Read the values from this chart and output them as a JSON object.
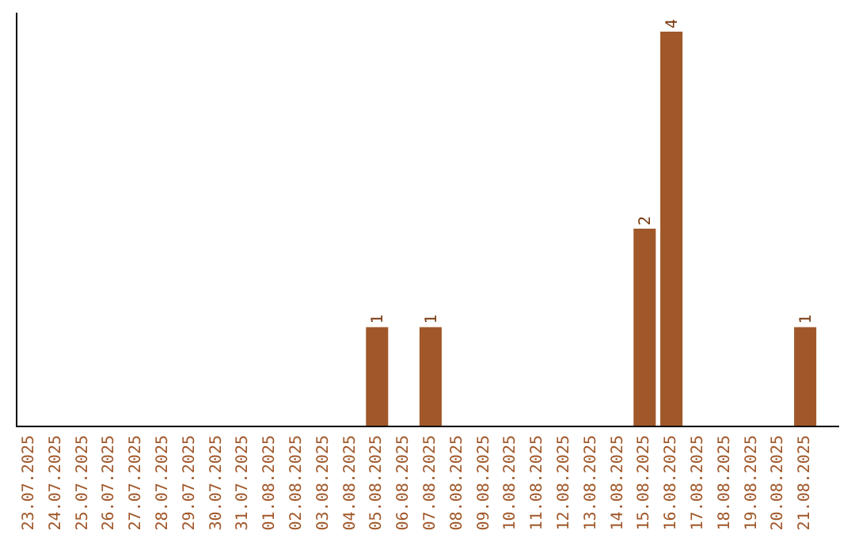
{
  "chart_data": {
    "type": "bar",
    "categories": [
      "23.07.2025",
      "24.07.2025",
      "25.07.2025",
      "26.07.2025",
      "27.07.2025",
      "28.07.2025",
      "29.07.2025",
      "30.07.2025",
      "31.07.2025",
      "01.08.2025",
      "02.08.2025",
      "03.08.2025",
      "04.08.2025",
      "05.08.2025",
      "06.08.2025",
      "07.08.2025",
      "08.08.2025",
      "09.08.2025",
      "10.08.2025",
      "11.08.2025",
      "12.08.2025",
      "13.08.2025",
      "14.08.2025",
      "15.08.2025",
      "16.08.2025",
      "17.08.2025",
      "18.08.2025",
      "19.08.2025",
      "20.08.2025",
      "21.08.2025"
    ],
    "values": [
      null,
      null,
      null,
      null,
      null,
      null,
      null,
      null,
      null,
      null,
      null,
      null,
      null,
      1,
      null,
      1,
      null,
      null,
      null,
      null,
      null,
      null,
      null,
      2,
      4,
      null,
      null,
      null,
      null,
      1
    ],
    "data_labels": true,
    "color": "#a0582a",
    "grid": false
  }
}
